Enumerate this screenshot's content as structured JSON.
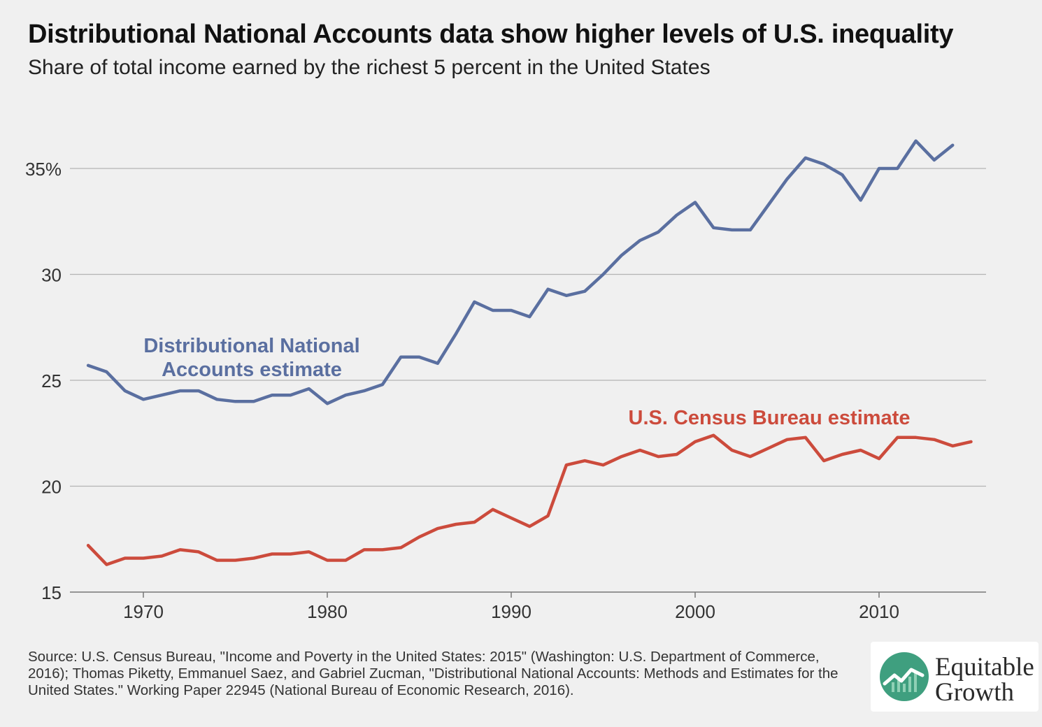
{
  "title": "Distributional National Accounts data show higher levels of U.S. inequality",
  "subtitle": "Share of total income earned by the richest 5 percent in the United States",
  "source": "Source: U.S. Census Bureau, \"Income and Poverty in the United States: 2015\" (Washington: U.S. Department of Commerce, 2016); Thomas Piketty, Emmanuel Saez, and Gabriel Zucman, \"Distributional National Accounts: Methods and Estimates for the United States.\" Working Paper 22945 (National Bureau of Economic Research, 2016).",
  "logo": {
    "line1": "Equitable",
    "line2": "Growth",
    "icon": "rising-line-chart-icon"
  },
  "colors": {
    "dina": "#5a6fa0",
    "census": "#cc4b3c",
    "grid": "#b3b3b3",
    "background": "#f0f0f0",
    "logo_green": "#3f9f7f"
  },
  "chart_data": {
    "type": "line",
    "xlim": [
      1966,
      2016
    ],
    "ylim": [
      15,
      37
    ],
    "x_ticks": [
      1970,
      1980,
      1990,
      2000,
      2010
    ],
    "y_ticks": [
      {
        "value": 15,
        "label": "15"
      },
      {
        "value": 20,
        "label": "20"
      },
      {
        "value": 25,
        "label": "25"
      },
      {
        "value": 30,
        "label": "30"
      },
      {
        "value": 35,
        "label": "35%"
      }
    ],
    "grid": "horizontal",
    "series": [
      {
        "name": "Distributional National Accounts estimate",
        "label_lines": [
          "Distributional National",
          "Accounts estimate"
        ],
        "color": "#5a6fa0",
        "x": [
          1967,
          1968,
          1969,
          1970,
          1971,
          1972,
          1973,
          1974,
          1975,
          1976,
          1977,
          1978,
          1979,
          1980,
          1981,
          1982,
          1983,
          1984,
          1985,
          1986,
          1987,
          1988,
          1989,
          1990,
          1991,
          1992,
          1993,
          1994,
          1995,
          1996,
          1997,
          1998,
          1999,
          2000,
          2001,
          2002,
          2003,
          2004,
          2005,
          2006,
          2007,
          2008,
          2009,
          2010,
          2011,
          2012,
          2013,
          2014
        ],
        "values": [
          25.7,
          25.4,
          24.5,
          24.1,
          24.3,
          24.5,
          24.5,
          24.1,
          24.0,
          24.0,
          24.3,
          24.3,
          24.6,
          23.9,
          24.3,
          24.5,
          24.8,
          26.1,
          26.1,
          25.8,
          27.2,
          28.7,
          28.3,
          28.3,
          28.0,
          29.3,
          29.0,
          29.2,
          30.0,
          30.9,
          31.6,
          32.0,
          32.8,
          33.4,
          32.2,
          32.1,
          32.1,
          33.3,
          34.5,
          35.5,
          35.2,
          34.7,
          33.5,
          35.0,
          35.0,
          36.3,
          35.4,
          36.1
        ]
      },
      {
        "name": "U.S. Census Bureau estimate",
        "label_lines": [
          "U.S. Census Bureau estimate"
        ],
        "color": "#cc4b3c",
        "x": [
          1967,
          1968,
          1969,
          1970,
          1971,
          1972,
          1973,
          1974,
          1975,
          1976,
          1977,
          1978,
          1979,
          1980,
          1981,
          1982,
          1983,
          1984,
          1985,
          1986,
          1987,
          1988,
          1989,
          1990,
          1991,
          1992,
          1993,
          1994,
          1995,
          1996,
          1997,
          1998,
          1999,
          2000,
          2001,
          2002,
          2003,
          2004,
          2005,
          2006,
          2007,
          2008,
          2009,
          2010,
          2011,
          2012,
          2013,
          2014,
          2015
        ],
        "values": [
          17.2,
          16.3,
          16.6,
          16.6,
          16.7,
          17.0,
          16.9,
          16.5,
          16.5,
          16.6,
          16.8,
          16.8,
          16.9,
          16.5,
          16.5,
          17.0,
          17.0,
          17.1,
          17.6,
          18.0,
          18.2,
          18.3,
          18.9,
          18.5,
          18.1,
          18.6,
          21.0,
          21.2,
          21.0,
          21.4,
          21.7,
          21.4,
          21.5,
          22.1,
          22.4,
          21.7,
          21.4,
          21.8,
          22.2,
          22.3,
          21.2,
          21.5,
          21.7,
          21.3,
          22.3,
          22.3,
          22.2,
          21.9,
          22.1
        ]
      }
    ]
  }
}
